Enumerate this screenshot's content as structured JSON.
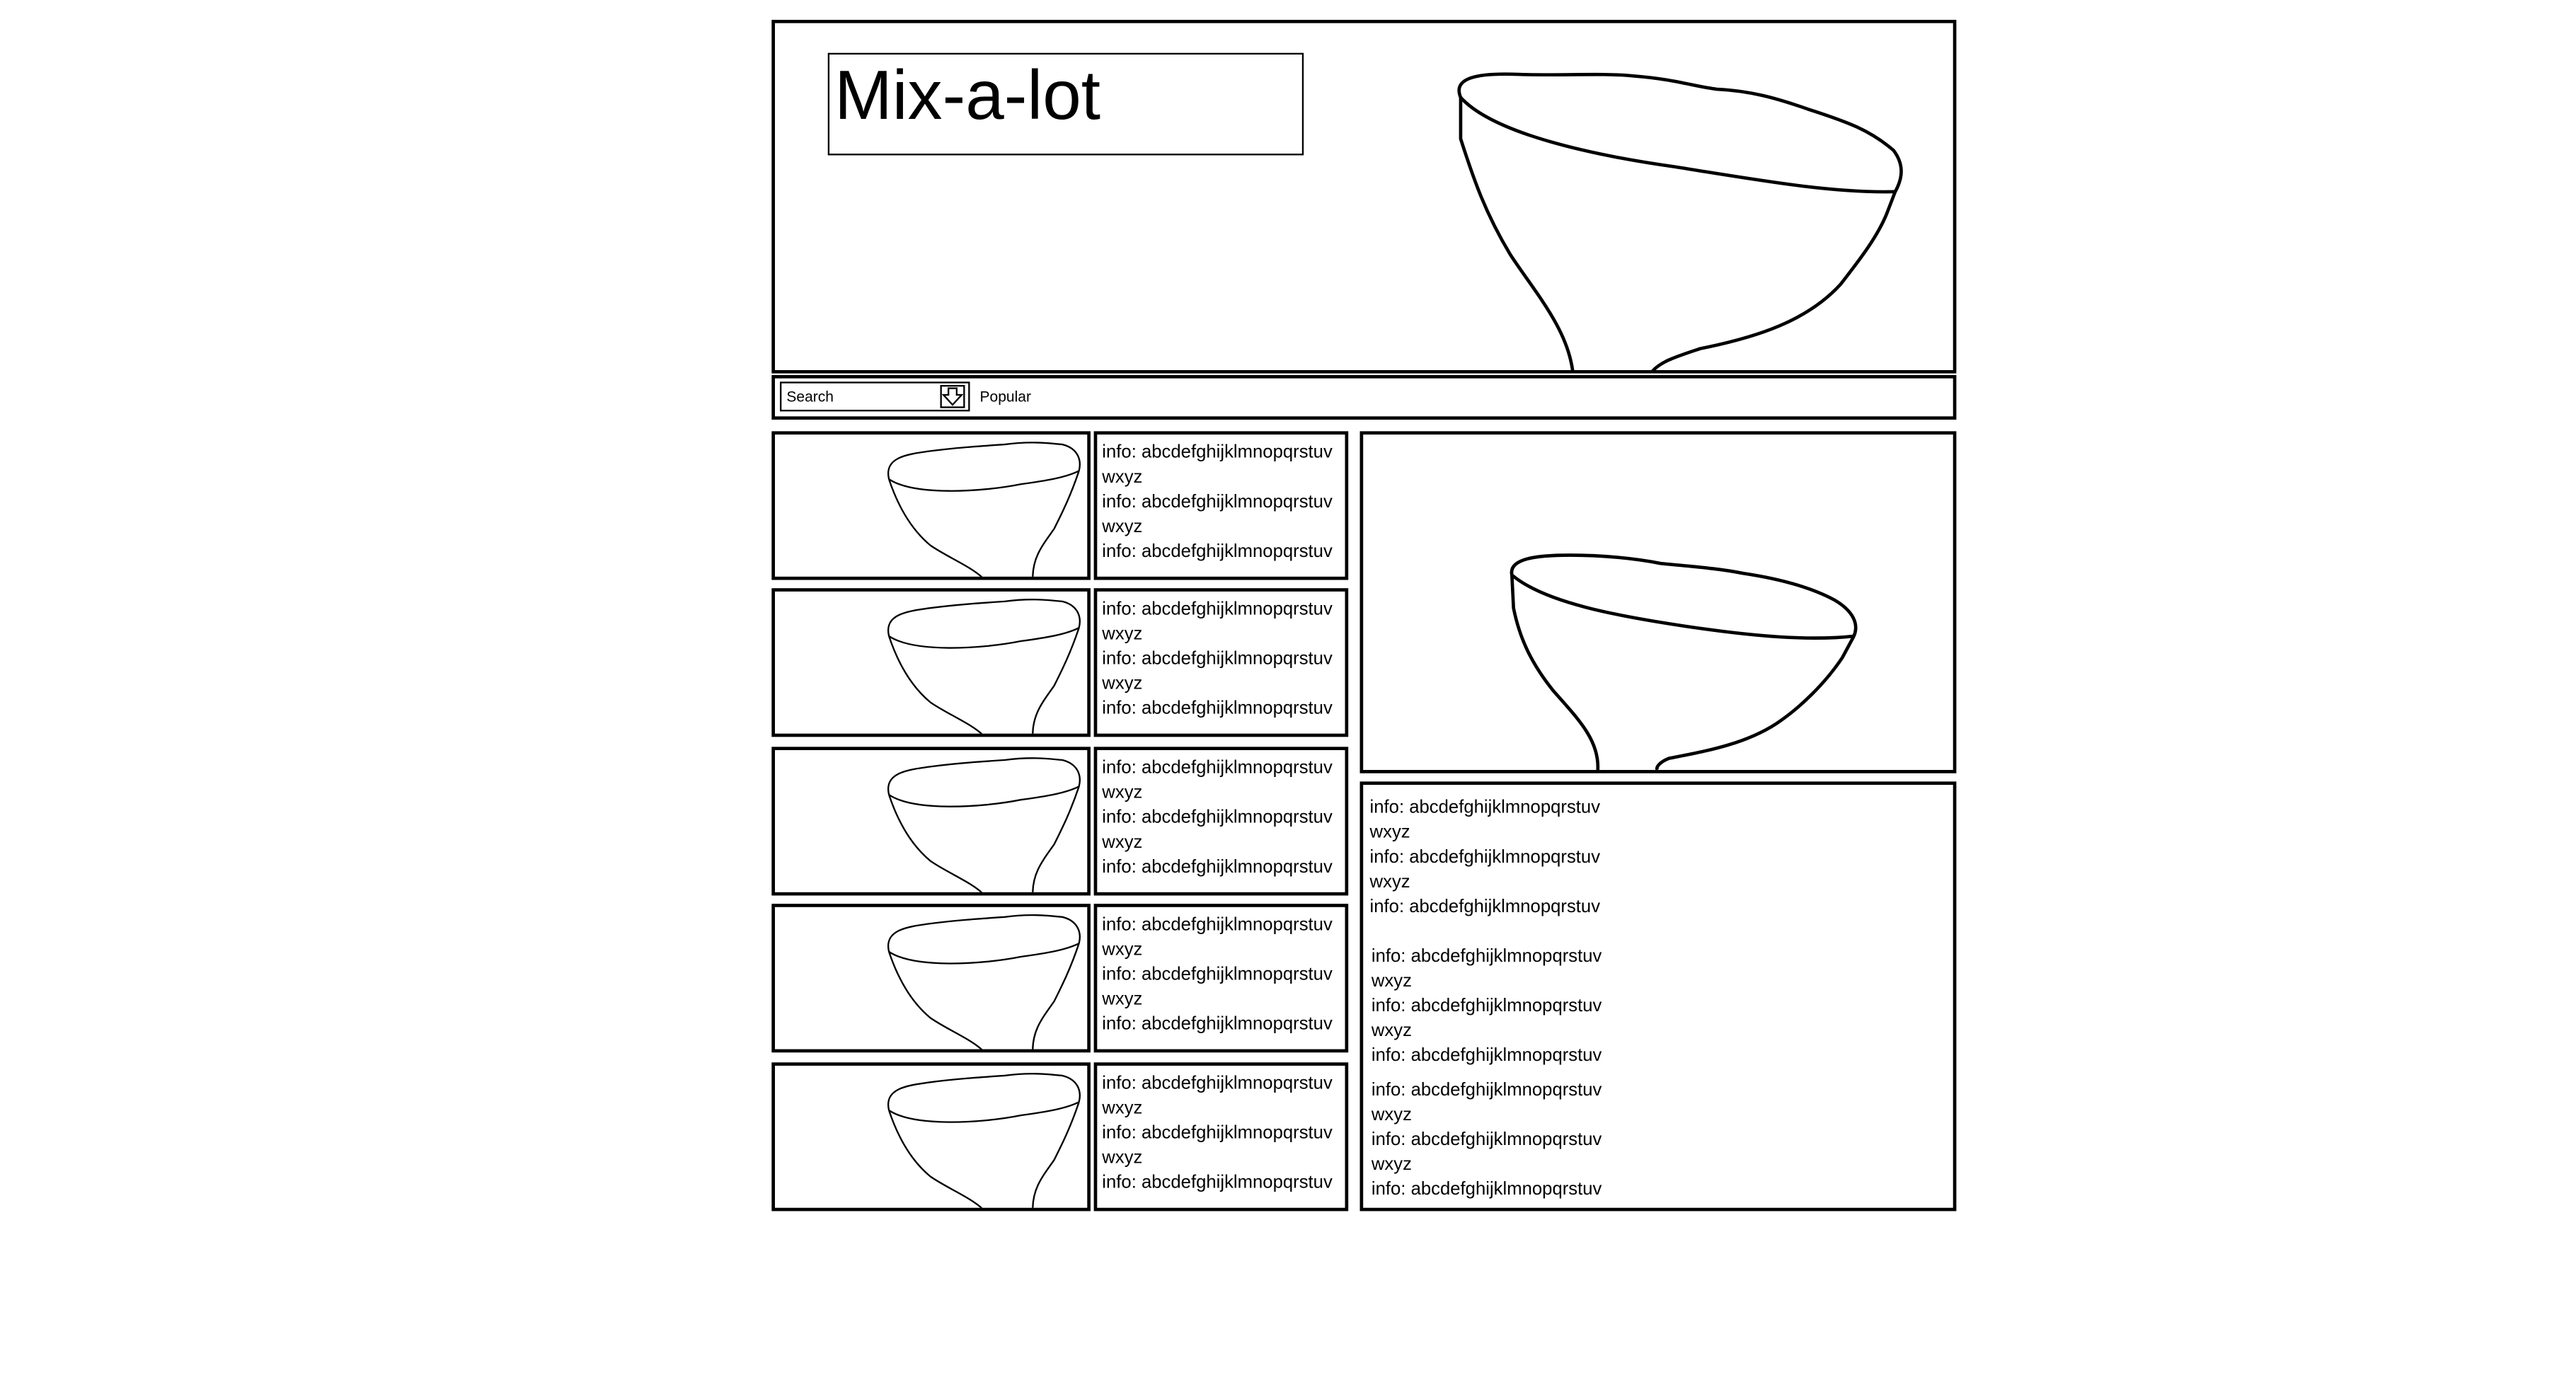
{
  "header": {
    "title": "Mix-a-lot",
    "hero_image_icon": "funnel-icon"
  },
  "navbar": {
    "search_label": "Search",
    "search_button_icon": "download-arrow-icon",
    "popular_label": "Popular"
  },
  "list_items": [
    {
      "thumbnail_icon": "funnel-icon",
      "info": "info: abcdefghijklmnopqrstuv\nwxyz\ninfo: abcdefghijklmnopqrstuv\nwxyz\ninfo: abcdefghijklmnopqrstuv"
    },
    {
      "thumbnail_icon": "funnel-icon",
      "info": "info: abcdefghijklmnopqrstuv\nwxyz\ninfo: abcdefghijklmnopqrstuv\nwxyz\ninfo: abcdefghijklmnopqrstuv"
    },
    {
      "thumbnail_icon": "funnel-icon",
      "info": "info: abcdefghijklmnopqrstuv\nwxyz\ninfo: abcdefghijklmnopqrstuv\nwxyz\ninfo: abcdefghijklmnopqrstuv"
    },
    {
      "thumbnail_icon": "funnel-icon",
      "info": "info: abcdefghijklmnopqrstuv\nwxyz\ninfo: abcdefghijklmnopqrstuv\nwxyz\ninfo: abcdefghijklmnopqrstuv"
    },
    {
      "thumbnail_icon": "funnel-icon",
      "info": "info: abcdefghijklmnopqrstuv\nwxyz\ninfo: abcdefghijklmnopqrstuv\nwxyz\ninfo: abcdefghijklmnopqrstuv"
    }
  ],
  "detail": {
    "image_icon": "funnel-icon",
    "info_blocks": [
      "info: abcdefghijklmnopqrstuv\nwxyz\ninfo: abcdefghijklmnopqrstuv\nwxyz\ninfo: abcdefghijklmnopqrstuv",
      "info: abcdefghijklmnopqrstuv\nwxyz\ninfo: abcdefghijklmnopqrstuv\nwxyz\ninfo: abcdefghijklmnopqrstuv",
      "info: abcdefghijklmnopqrstuv\nwxyz\ninfo: abcdefghijklmnopqrstuv\nwxyz\ninfo: abcdefghijklmnopqrstuv"
    ]
  }
}
